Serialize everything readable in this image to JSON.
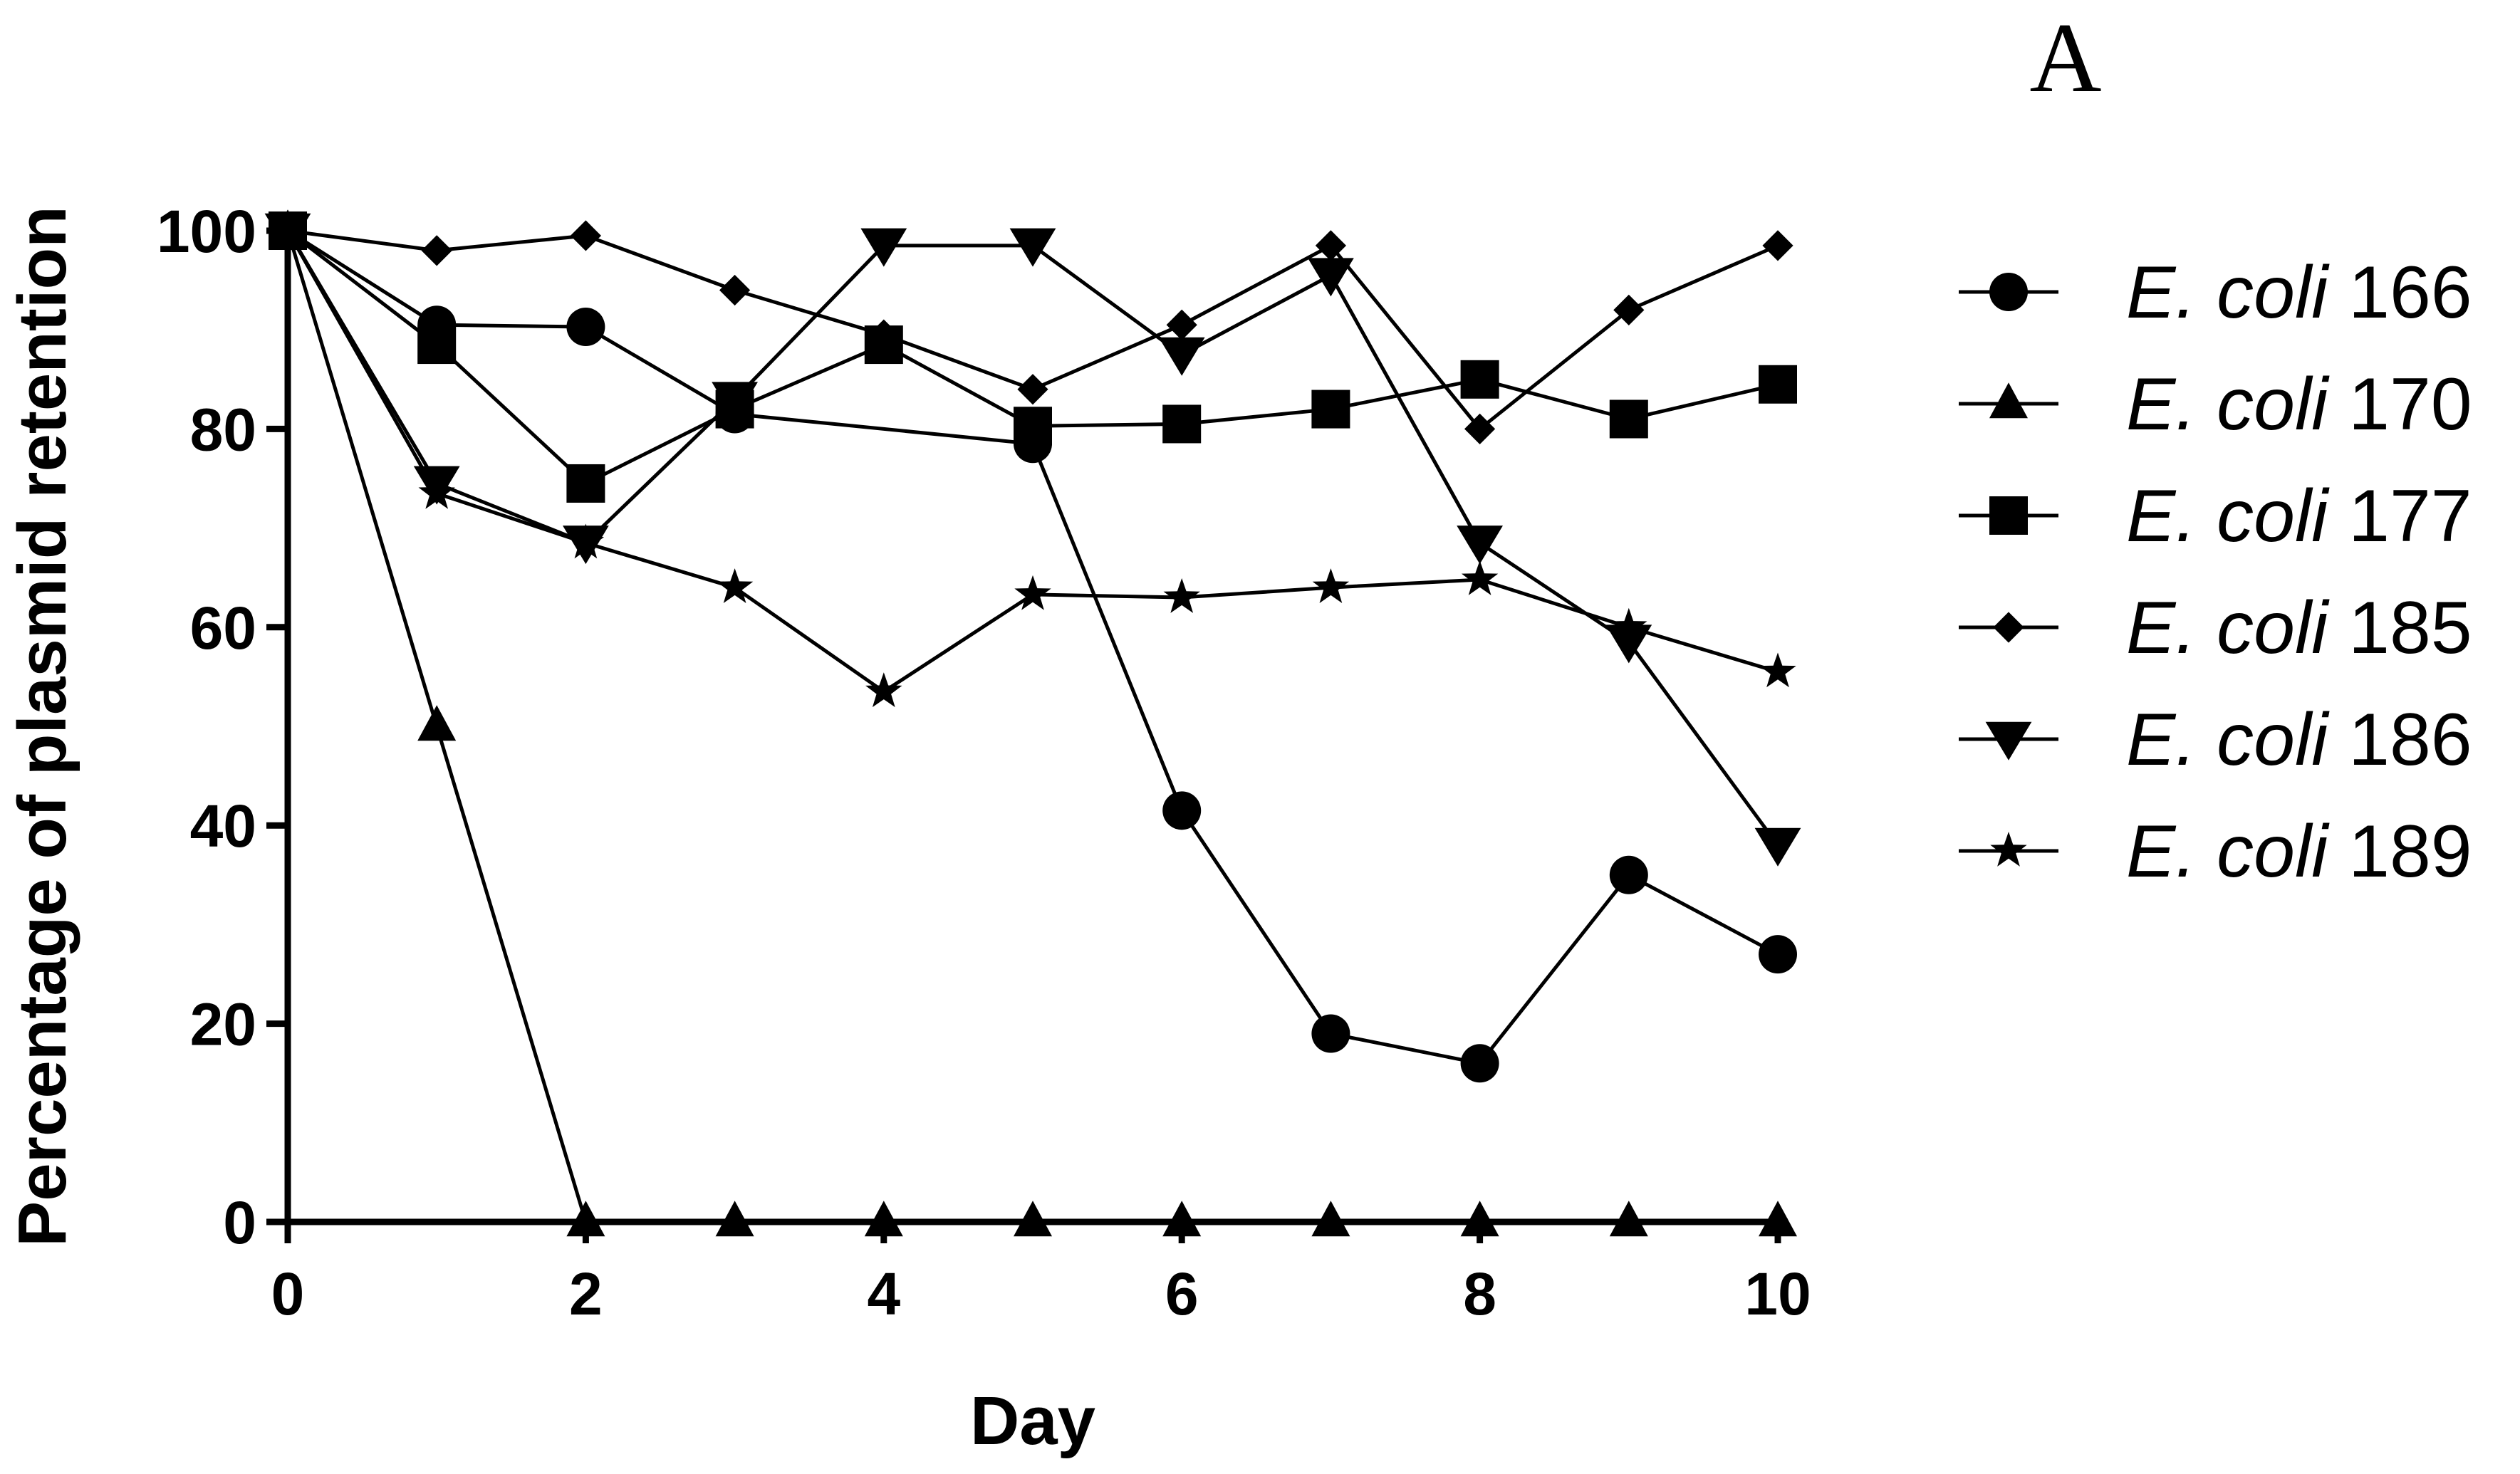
{
  "chart_data": {
    "type": "line",
    "panel_label": "A",
    "xlabel": "Day",
    "ylabel": "Percentage of plasmid retention",
    "xlim": [
      0,
      10
    ],
    "ylim": [
      0,
      100
    ],
    "x_ticks": [
      "0",
      "2",
      "4",
      "6",
      "8",
      "10"
    ],
    "y_ticks": [
      "0",
      "20",
      "40",
      "60",
      "80",
      "100"
    ],
    "legend_position": "right",
    "series": [
      {
        "name_italic": "E. coli",
        "name_number": "166",
        "marker": "circle",
        "x": [
          0,
          1,
          2,
          3,
          5,
          6,
          7,
          8,
          9,
          10
        ],
        "y": [
          100,
          90.5,
          90.3,
          81.5,
          78.5,
          41.5,
          19,
          16,
          35,
          27
        ]
      },
      {
        "name_italic": "E. coli",
        "name_number": "170",
        "marker": "triangle-up",
        "x": [
          0,
          1,
          2,
          3,
          4,
          5,
          6,
          7,
          8,
          9,
          10
        ],
        "y": [
          100,
          50,
          0,
          0,
          0,
          0,
          0,
          0,
          0,
          0,
          0
        ]
      },
      {
        "name_italic": "E. coli",
        "name_number": "177",
        "marker": "square",
        "x": [
          0,
          1,
          2,
          3,
          4,
          5,
          6,
          7,
          8,
          9,
          10
        ],
        "y": [
          100,
          88.5,
          74.5,
          82,
          88.5,
          80.3,
          80.5,
          82,
          85,
          81,
          84.5
        ]
      },
      {
        "name_italic": "E. coli",
        "name_number": "185",
        "marker": "diamond",
        "x": [
          0,
          1,
          2,
          3,
          4,
          5,
          6,
          7,
          8,
          9,
          10
        ],
        "y": [
          100,
          98,
          99.5,
          94,
          89.5,
          84,
          90.5,
          98.5,
          80,
          92,
          98.5
        ]
      },
      {
        "name_italic": "E. coli",
        "name_number": "186",
        "marker": "triangle-down",
        "x": [
          0,
          1,
          2,
          3,
          4,
          5,
          6,
          7,
          8,
          9,
          10
        ],
        "y": [
          100,
          74.5,
          68.5,
          83,
          98.5,
          98.5,
          87.5,
          95.5,
          68.5,
          58.5,
          38
        ]
      },
      {
        "name_italic": "E. coli",
        "name_number": "189",
        "marker": "star",
        "x": [
          0,
          1,
          2,
          3,
          4,
          5,
          6,
          7,
          8,
          9,
          10
        ],
        "y": [
          100,
          73.5,
          68.5,
          64,
          53.5,
          63.3,
          63,
          64,
          64.8,
          60,
          55.5
        ]
      }
    ]
  }
}
